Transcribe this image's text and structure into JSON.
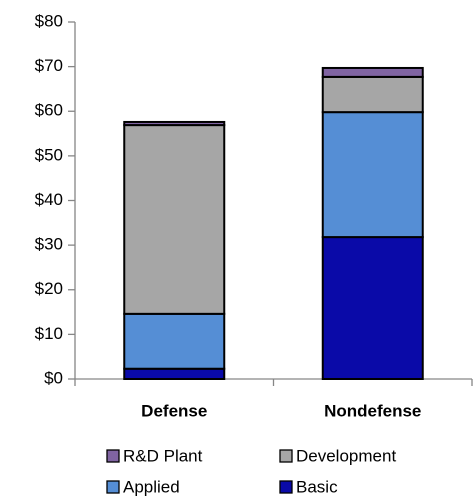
{
  "chart_data": {
    "type": "stacked_bar",
    "categories": [
      "Defense",
      "Nondefense"
    ],
    "series": [
      {
        "name": "Basic",
        "color": "#0a0aa8",
        "values": [
          2.3,
          31.8
        ]
      },
      {
        "name": "Applied",
        "color": "#558ed5",
        "values": [
          12.3,
          28.0
        ]
      },
      {
        "name": "Development",
        "color": "#a6a6a6",
        "values": [
          42.3,
          7.9
        ]
      },
      {
        "name": "R&D Plant",
        "color": "#8064a2",
        "values": [
          0.7,
          2.0
        ]
      }
    ],
    "ylim": [
      0,
      80
    ],
    "yticks": [
      {
        "value": 0,
        "label": "$0"
      },
      {
        "value": 10,
        "label": "$10"
      },
      {
        "value": 20,
        "label": "$20"
      },
      {
        "value": 30,
        "label": "$30"
      },
      {
        "value": 40,
        "label": "$40"
      },
      {
        "value": 50,
        "label": "$50"
      },
      {
        "value": 60,
        "label": "$60"
      },
      {
        "value": 70,
        "label": "$70"
      },
      {
        "value": 80,
        "label": "$80"
      }
    ],
    "grid": false
  }
}
